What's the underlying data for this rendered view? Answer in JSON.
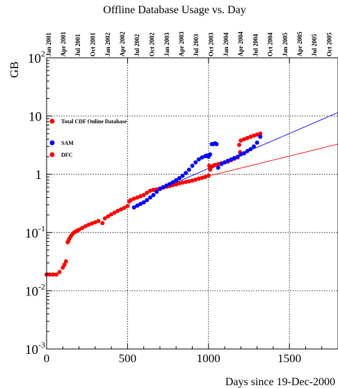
{
  "chart_data": {
    "type": "scatter",
    "title": "Offline Database Usage vs. Day",
    "xlabel": "Days since 19-Dec-2000",
    "ylabel": "GB",
    "x_scale": "linear",
    "y_scale": "log",
    "xlim": [
      0,
      1800
    ],
    "ylim": [
      0.001,
      100
    ],
    "grid": true,
    "x_ticks": [
      {
        "value": 0,
        "label": "0"
      },
      {
        "value": 500,
        "label": "500"
      },
      {
        "value": 1000,
        "label": "1000"
      },
      {
        "value": 1500,
        "label": "1500"
      }
    ],
    "y_ticks": [
      {
        "value": 0.001,
        "base": "10",
        "exp": "-3"
      },
      {
        "value": 0.01,
        "base": "10",
        "exp": "-2"
      },
      {
        "value": 0.1,
        "base": "10",
        "exp": "-1"
      },
      {
        "value": 1,
        "base": "1",
        "exp": ""
      },
      {
        "value": 10,
        "base": "10",
        "exp": ""
      },
      {
        "value": 100,
        "base": "10",
        "exp": "2"
      }
    ],
    "top_axis_ticks": [
      {
        "value": 13,
        "label": "Jan 2001"
      },
      {
        "value": 103,
        "label": "Apr 2001"
      },
      {
        "value": 194,
        "label": "Jul 2001"
      },
      {
        "value": 286,
        "label": "Oct 2001"
      },
      {
        "value": 378,
        "label": "Jan 2002"
      },
      {
        "value": 468,
        "label": "Apr 2002"
      },
      {
        "value": 559,
        "label": "Jul 2002"
      },
      {
        "value": 651,
        "label": "Oct 2002"
      },
      {
        "value": 743,
        "label": "Jan 2003"
      },
      {
        "value": 833,
        "label": "Apr 2003"
      },
      {
        "value": 924,
        "label": "Jul 2003"
      },
      {
        "value": 1016,
        "label": "Oct 2003"
      },
      {
        "value": 1108,
        "label": "Jan 2004"
      },
      {
        "value": 1199,
        "label": "Apr 2004"
      },
      {
        "value": 1290,
        "label": "Jul 2004"
      },
      {
        "value": 1382,
        "label": "Oct 2004"
      },
      {
        "value": 1474,
        "label": "Jan 2005"
      },
      {
        "value": 1564,
        "label": "Apr 2005"
      },
      {
        "value": 1655,
        "label": "Jul 2005"
      },
      {
        "value": 1747,
        "label": "Oct 2005"
      }
    ],
    "legend": [
      {
        "label": "Total CDF Online Database",
        "color": "#ff0000"
      },
      {
        "label": "SAM",
        "color": "#0000ff"
      },
      {
        "label": "DFC",
        "color": "#ff0000"
      }
    ],
    "series": [
      {
        "color": "#ff0000",
        "x": [
          0,
          20,
          40,
          60,
          80,
          100,
          110,
          120,
          130,
          135,
          140,
          150,
          160,
          170,
          180,
          190,
          200,
          220,
          240,
          260,
          280,
          300,
          320,
          345,
          360,
          380,
          400,
          420,
          440,
          460,
          480,
          500,
          510,
          520,
          540,
          560,
          580,
          600,
          620,
          640,
          660,
          680,
          700,
          720,
          740,
          760,
          780,
          800,
          820,
          840,
          860,
          880,
          900,
          920,
          940,
          960,
          980,
          1000,
          1005,
          1010,
          1020,
          1030,
          1040,
          1060,
          1080,
          1100,
          1120,
          1140,
          1160,
          1180,
          1190,
          1195,
          1200,
          1220,
          1240,
          1260,
          1280,
          1300,
          1320
        ],
        "y": [
          0.019,
          0.019,
          0.019,
          0.019,
          0.021,
          0.025,
          0.028,
          0.032,
          0.068,
          0.072,
          0.078,
          0.086,
          0.094,
          0.1,
          0.104,
          0.108,
          0.112,
          0.12,
          0.128,
          0.136,
          0.143,
          0.15,
          0.158,
          0.145,
          0.175,
          0.19,
          0.205,
          0.22,
          0.235,
          0.25,
          0.265,
          0.285,
          0.34,
          0.36,
          0.38,
          0.4,
          0.42,
          0.44,
          0.48,
          0.52,
          0.54,
          0.55,
          0.57,
          0.59,
          0.61,
          0.63,
          0.65,
          0.67,
          0.7,
          0.72,
          0.74,
          0.76,
          0.78,
          0.81,
          0.84,
          0.87,
          0.9,
          0.95,
          1.4,
          1.2,
          1.35,
          1.4,
          1.45,
          1.5,
          1.55,
          1.6,
          1.65,
          1.75,
          1.85,
          1.95,
          3.2,
          2.4,
          3.8,
          4.0,
          4.2,
          4.4,
          4.6,
          4.8,
          5.0
        ]
      },
      {
        "color": "#0000ff",
        "x": [
          540,
          560,
          580,
          600,
          620,
          640,
          660,
          680,
          700,
          720,
          740,
          760,
          780,
          800,
          820,
          840,
          860,
          880,
          900,
          920,
          940,
          960,
          980,
          990,
          1000,
          1010,
          1020,
          1030,
          1040,
          1050,
          1060,
          1080,
          1100,
          1120,
          1140,
          1160,
          1180,
          1200,
          1220,
          1240,
          1260,
          1280,
          1300,
          1320
        ],
        "y": [
          0.27,
          0.29,
          0.31,
          0.33,
          0.36,
          0.4,
          0.44,
          0.5,
          0.56,
          0.6,
          0.64,
          0.68,
          0.73,
          0.79,
          0.86,
          0.94,
          1.05,
          1.2,
          1.4,
          1.6,
          1.8,
          1.95,
          2.05,
          2.1,
          2.0,
          2.2,
          3.3,
          3.3,
          3.4,
          3.3,
          1.3,
          1.5,
          1.6,
          1.7,
          1.8,
          1.9,
          2.0,
          2.2,
          2.3,
          2.5,
          2.7,
          3.0,
          3.5,
          4.4
        ]
      }
    ],
    "fit_lines": [
      {
        "color": "#0000ff",
        "x": [
          700,
          1800
        ],
        "y": [
          0.55,
          11.5
        ]
      },
      {
        "color": "#ff0000",
        "x": [
          700,
          1800
        ],
        "y": [
          0.58,
          3.3
        ]
      }
    ]
  }
}
